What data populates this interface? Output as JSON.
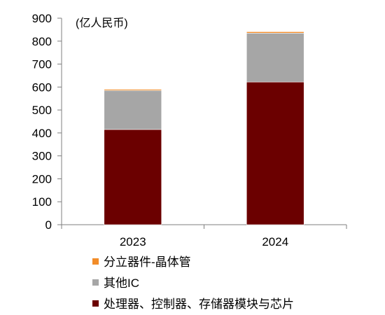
{
  "chart_data": {
    "type": "bar",
    "stacked": true,
    "unit_label": "(亿人民币)",
    "categories": [
      "2023",
      "2024"
    ],
    "ylim": [
      0,
      900
    ],
    "y_ticks": [
      0,
      100,
      200,
      300,
      400,
      500,
      600,
      700,
      800,
      900
    ],
    "grid": false,
    "legend_position": "bottom-left",
    "series": [
      {
        "name": "处理器、控制器、存储器模块与芯片",
        "color": "#6b0000",
        "values": [
          415,
          622
        ]
      },
      {
        "name": "其他IC",
        "color": "#a6a6a6",
        "values": [
          170,
          213
        ]
      },
      {
        "name": "分立器件-晶体管",
        "color": "#f28c28",
        "values": [
          5,
          6
        ]
      }
    ],
    "legend_order": [
      2,
      1,
      0
    ]
  }
}
